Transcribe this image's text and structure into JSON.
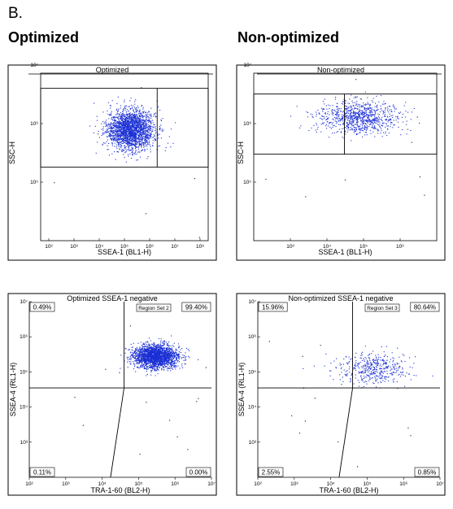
{
  "panel_label": "B.",
  "columns": [
    "Optimized",
    "Non-optimized"
  ],
  "chart_data": [
    {
      "type": "scatter",
      "title": "Optimized",
      "xlabel": "SSEA-1 (BL1-H)",
      "ylabel": "SSC-H",
      "x_scale": "log",
      "y_scale": "log",
      "xlim": [
        100,
        10000000
      ],
      "ylim": [
        10000,
        10000000
      ],
      "x_ticks": [
        "10²",
        "10³",
        "10⁴",
        "10⁵",
        "10⁶",
        "10⁷",
        "10⁸"
      ],
      "y_ticks": [
        "10⁵",
        "10⁶",
        "10⁷"
      ],
      "gate_rect": {
        "x": [
          100,
          10000000
        ],
        "y": [
          180000,
          4000000
        ]
      },
      "gate_split_x": 300000,
      "population": {
        "x_center": 48000,
        "y_center": 800000,
        "x_spread_log": 0.35,
        "y_spread_log": 0.17,
        "density": "high"
      },
      "color": "#1a2fd4"
    },
    {
      "type": "scatter",
      "title": "Non-optimized",
      "xlabel": "SSEA-1 (BL1-H)",
      "ylabel": "SSC-H",
      "x_scale": "log",
      "y_scale": "log",
      "xlim": [
        100,
        10000000
      ],
      "ylim": [
        10000,
        10000000
      ],
      "x_ticks": [
        "10³",
        "10⁴",
        "10⁵",
        "10⁶"
      ],
      "y_ticks": [
        "10⁵",
        "10⁶",
        "10⁷"
      ],
      "gate_rect": {
        "x": [
          100,
          10000000
        ],
        "y": [
          300000,
          3200000
        ]
      },
      "gate_split_x": 30000,
      "population": {
        "x_center": 70000,
        "y_center": 1300000,
        "x_spread_log": 0.55,
        "y_spread_log": 0.14,
        "density": "medium"
      },
      "color": "#1a2fd4"
    },
    {
      "type": "scatter",
      "title": "Optimized SSEA-1 negative",
      "xlabel": "TRA-1-60 (BL2-H)",
      "ylabel": "SSEA-4 (RL1-H)",
      "x_scale": "log",
      "y_scale": "log",
      "xlim": [
        100,
        10000000
      ],
      "ylim": [
        100,
        10000000
      ],
      "x_ticks": [
        "10²",
        "10³",
        "10⁴",
        "10⁵",
        "10⁶",
        "10⁷"
      ],
      "y_ticks": [
        "10³",
        "10⁴",
        "10⁵",
        "10⁶",
        "10⁷"
      ],
      "region_label": "Region Set 2",
      "quadrants": {
        "top_left": "0.49%",
        "top_right": "99.40%",
        "bottom_left": "0.11%",
        "bottom_right": "0.00%"
      },
      "quadrant_split_y": 35000,
      "quadrant_split_x_top": 40000,
      "quadrant_split_x_bottom": 17000,
      "population": {
        "x_center": 280000,
        "y_center": 280000,
        "x_spread_log": 0.3,
        "y_spread_log": 0.17,
        "density": "high"
      },
      "color": "#1a2fd4"
    },
    {
      "type": "scatter",
      "title": "Non-optimized SSEA-1 negative",
      "xlabel": "TRA-1-60 (BL2-H)",
      "ylabel": "SSEA-4 (RL1-H)",
      "x_scale": "log",
      "y_scale": "log",
      "xlim": [
        100,
        10000000
      ],
      "ylim": [
        100,
        10000000
      ],
      "x_ticks": [
        "10²",
        "10³",
        "10⁴",
        "10⁵",
        "10⁶",
        "10⁷"
      ],
      "y_ticks": [
        "10³",
        "10⁴",
        "10⁵",
        "10⁶",
        "10⁷"
      ],
      "region_label": "Region Set 3",
      "quadrants": {
        "top_left": "15.96%",
        "top_right": "80.64%",
        "bottom_left": "2.55%",
        "bottom_right": "0.85%"
      },
      "quadrant_split_y": 35000,
      "quadrant_split_x_top": 40000,
      "quadrant_split_x_bottom": 17000,
      "population": {
        "x_center": 150000,
        "y_center": 130000,
        "x_spread_log": 0.45,
        "y_spread_log": 0.22,
        "density": "low"
      },
      "color": "#1a2fd4"
    }
  ]
}
